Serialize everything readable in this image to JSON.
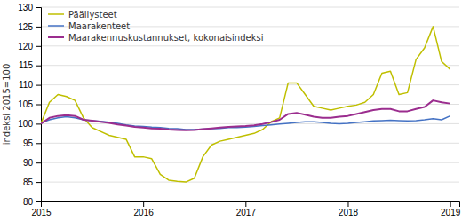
{
  "chart_data": {
    "type": "line",
    "ylabel": "indeksi 2015=100",
    "x": [
      2015.0,
      2015.0833333333333,
      2015.1666666666667,
      2015.25,
      2015.3333333333333,
      2015.4166666666667,
      2015.5,
      2015.5833333333333,
      2015.6666666666667,
      2015.75,
      2015.8333333333333,
      2015.9166666666667,
      2016.0,
      2016.0833333333333,
      2016.1666666666667,
      2016.25,
      2016.3333333333333,
      2016.4166666666667,
      2016.5,
      2016.5833333333333,
      2016.6666666666667,
      2016.75,
      2016.8333333333333,
      2016.9166666666667,
      2017.0,
      2017.0833333333333,
      2017.1666666666667,
      2017.25,
      2017.3333333333333,
      2017.4166666666667,
      2017.5,
      2017.5833333333333,
      2017.6666666666667,
      2017.75,
      2017.8333333333333,
      2017.9166666666667,
      2018.0,
      2018.0833333333333,
      2018.1666666666667,
      2018.25,
      2018.3333333333333,
      2018.4166666666667,
      2018.5,
      2018.5833333333333,
      2018.6666666666667,
      2018.75,
      2018.8333333333333,
      2018.9166666666667,
      2019.0
    ],
    "series": [
      {
        "name": "Päällysteet",
        "color": "#BFBF00",
        "values": [
          100.0,
          105.5,
          107.5,
          107.0,
          106.0,
          101.5,
          99.0,
          98.0,
          97.0,
          96.5,
          96.0,
          91.5,
          91.5,
          91.0,
          87.0,
          85.5,
          85.2,
          85.0,
          86.0,
          91.5,
          94.5,
          95.5,
          96.0,
          96.5,
          97.0,
          97.5,
          98.5,
          100.5,
          101.5,
          110.5,
          110.5,
          107.5,
          104.5,
          104.0,
          103.5,
          104.0,
          104.5,
          104.8,
          105.5,
          107.5,
          113.0,
          113.5,
          107.5,
          108.0,
          116.5,
          119.5,
          125.0,
          116.0,
          114.0
        ]
      },
      {
        "name": "Maarakenteet",
        "color": "#4472C4",
        "values": [
          100.2,
          101.0,
          101.5,
          101.8,
          101.5,
          101.0,
          100.8,
          100.6,
          100.4,
          100.1,
          99.7,
          99.4,
          99.3,
          99.1,
          99.0,
          98.8,
          98.7,
          98.5,
          98.5,
          98.6,
          98.7,
          98.8,
          99.0,
          99.0,
          99.1,
          99.3,
          99.5,
          99.7,
          99.9,
          100.1,
          100.3,
          100.5,
          100.5,
          100.3,
          100.1,
          100.0,
          100.1,
          100.3,
          100.5,
          100.7,
          100.8,
          100.9,
          100.8,
          100.7,
          100.8,
          101.0,
          101.3,
          101.0,
          102.0
        ]
      },
      {
        "name": "Maarakennuskustannukset, kokonaisindeksi",
        "color": "#9B2D8E",
        "values": [
          100.0,
          101.5,
          102.0,
          102.2,
          102.0,
          101.0,
          100.8,
          100.5,
          100.2,
          99.8,
          99.5,
          99.2,
          99.0,
          98.8,
          98.7,
          98.5,
          98.4,
          98.3,
          98.4,
          98.6,
          98.8,
          99.0,
          99.2,
          99.3,
          99.4,
          99.6,
          99.9,
          100.4,
          101.0,
          102.5,
          102.8,
          102.3,
          101.8,
          101.5,
          101.5,
          101.8,
          102.0,
          102.5,
          103.0,
          103.5,
          103.8,
          103.8,
          103.2,
          103.2,
          103.8,
          104.3,
          106.0,
          105.5,
          105.2
        ]
      }
    ],
    "xlim": [
      2015.0,
      2019.09
    ],
    "xticks": [
      2015,
      2016,
      2017,
      2018,
      2019
    ],
    "ylim": [
      80,
      130
    ],
    "yticks": [
      80,
      85,
      90,
      95,
      100,
      105,
      110,
      115,
      120,
      125,
      130
    ],
    "grid": true,
    "legend": "upper-left"
  }
}
